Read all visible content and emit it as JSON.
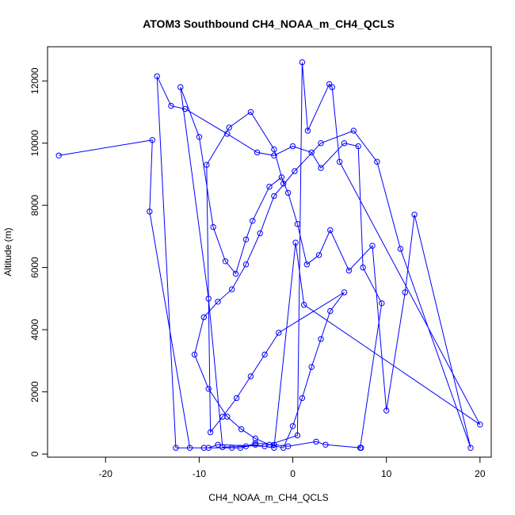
{
  "chart_data": {
    "type": "scatter",
    "title": "ATOM3 Southbound CH4_NOAA_m_CH4_QCLS",
    "xlabel": "CH4_NOAA_m_CH4_QCLS",
    "ylabel": "Altitude (m)",
    "xlim": [
      -26.2,
      21.2
    ],
    "ylim": [
      -100,
      13100
    ],
    "xticks": [
      -20,
      -10,
      0,
      10,
      20
    ],
    "yticks": [
      0,
      2000,
      4000,
      6000,
      8000,
      10000,
      12000
    ],
    "grid": false,
    "line_color": "#0000ff",
    "marker": "open-circle",
    "series": [
      {
        "x": [
          -25.0,
          -15.0,
          -15.3,
          -11.0,
          -9.0,
          -8.0,
          -3.0,
          0.5,
          1.0,
          1.6,
          3.9,
          4.2,
          5.0,
          20.0,
          1.2,
          0.3,
          -2.0,
          -4.0,
          -5.6,
          -6.5,
          -9.5,
          -12.5,
          -14.5,
          -13.0,
          -11.5,
          -7.0,
          -3.8,
          -2.0,
          0.0,
          2.0,
          3.0,
          5.5,
          7.0,
          7.5,
          9.5,
          7.2,
          7.3,
          3.5,
          2.5,
          -0.5,
          -2.0,
          -4.0,
          -5.0,
          -7.5,
          -9.0,
          -12.0,
          -10.0,
          -8.5,
          -7.2,
          -6.1,
          -5.0,
          -4.3,
          -2.5,
          -1.2,
          -0.5,
          0.5,
          1.5,
          2.8,
          4.0,
          6.0,
          8.5,
          10.0,
          12.0,
          13.0,
          19.0,
          11.5,
          9.0,
          6.5,
          3.0,
          0.2,
          -2.0,
          -3.5,
          -5.0,
          -6.5,
          -8.0,
          -9.5,
          -10.5,
          -9.0,
          -7.0,
          -5.5,
          -4.0,
          -2.5,
          -1.0,
          0.0,
          1.0,
          2.0,
          3.0,
          4.0,
          5.5,
          -1.5,
          -3.0,
          -4.5,
          -6.0,
          -7.5,
          -8.8,
          -9.2,
          -6.8,
          -4.5,
          -2.0,
          -1.0
        ],
        "y": [
          9600,
          10100,
          7800,
          200,
          200,
          300,
          250,
          600,
          12600,
          10400,
          11900,
          11800,
          9400,
          950,
          4800,
          6800,
          200,
          300,
          200,
          200,
          200,
          200,
          12150,
          11200,
          11100,
          10300,
          9700,
          9600,
          9900,
          9700,
          9200,
          10000,
          9900,
          6000,
          4850,
          200,
          200,
          300,
          400,
          250,
          300,
          350,
          250,
          220,
          5000,
          11800,
          10200,
          7300,
          6200,
          5800,
          6900,
          7500,
          8600,
          8900,
          8400,
          7400,
          6100,
          6400,
          7200,
          5900,
          6700,
          1400,
          5200,
          7700,
          200,
          6600,
          9400,
          10400,
          10000,
          9100,
          8300,
          7100,
          6100,
          5300,
          4900,
          4400,
          3200,
          2100,
          1200,
          800,
          500,
          300,
          200,
          900,
          1800,
          2800,
          3700,
          4600,
          5200,
          3900,
          3200,
          2500,
          1800,
          1200,
          700,
          9300,
          10500,
          11000,
          9800,
          8700
        ]
      }
    ]
  }
}
